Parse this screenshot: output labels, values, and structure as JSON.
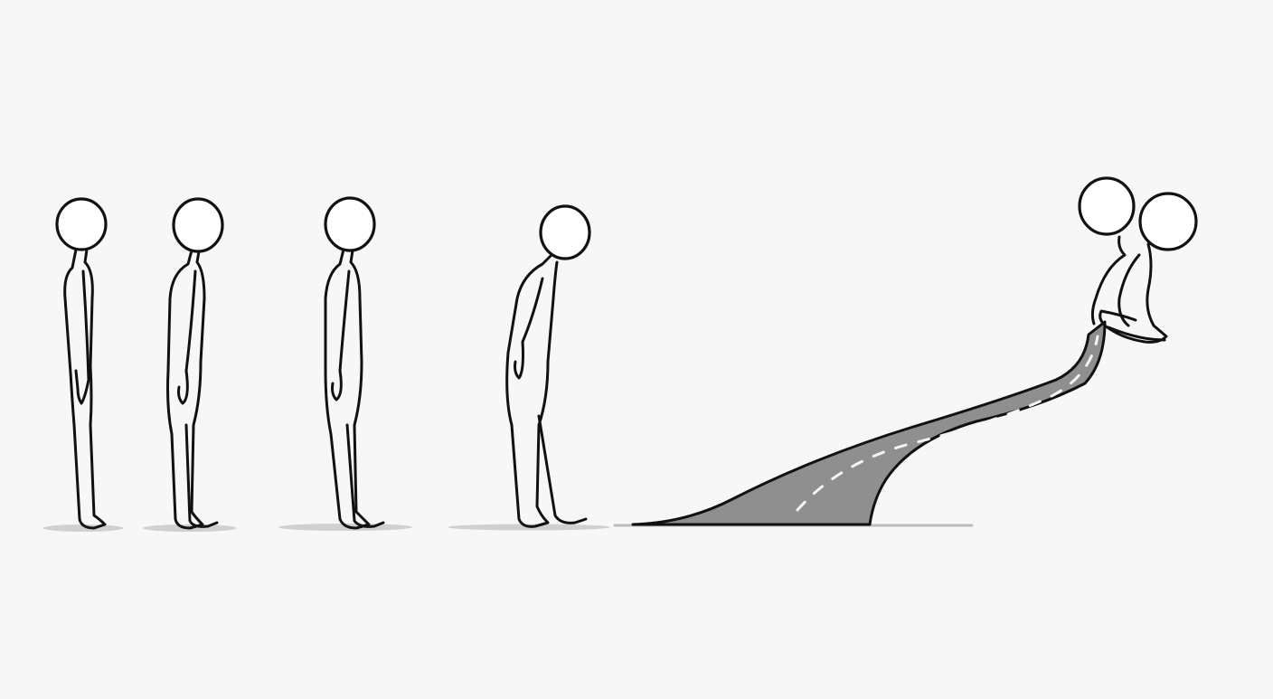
{
  "scene": {
    "figures": [
      {
        "pose": "standing-upright"
      },
      {
        "pose": "standing-upright"
      },
      {
        "pose": "standing-upright"
      },
      {
        "pose": "walking-head-down"
      }
    ],
    "road": {
      "colors": {
        "surface": "#8f8f8f",
        "dashes": "#f4f4f4",
        "outline": "#111111"
      }
    },
    "merged_figure": {
      "pose": "two-heads-seated-on-road"
    },
    "colors": {
      "background": "#f7f7f7",
      "ink": "#111111",
      "shadow": "#c9c9c9"
    }
  }
}
